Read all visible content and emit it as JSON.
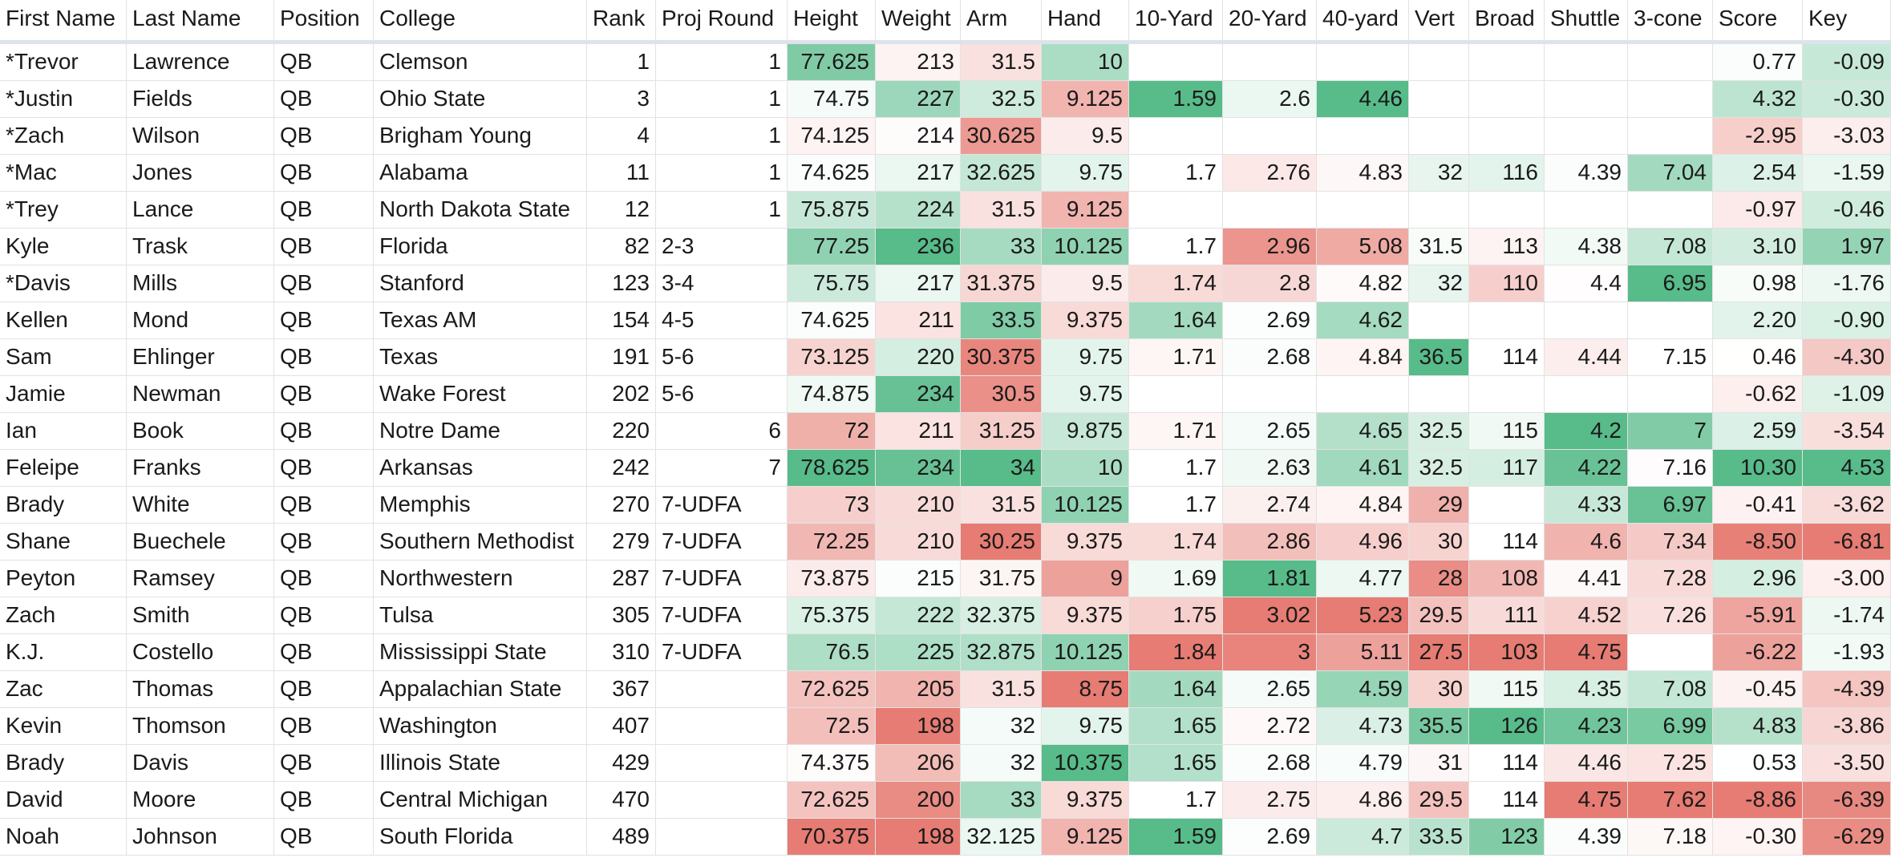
{
  "sheet": {
    "headers": [
      "First Name",
      "Last Name",
      "Position",
      "College",
      "Rank",
      "Proj Round",
      "Height",
      "Weight",
      "Arm",
      "Hand",
      "10-Yard",
      "20-Yard",
      "40-yard",
      "Vert",
      "Broad",
      "Shuttle",
      "3-cone",
      "Score",
      "Key"
    ],
    "rows": [
      [
        "*Trevor",
        "Lawrence",
        "QB",
        "Clemson",
        "1",
        "1",
        "77.625",
        "213",
        "31.5",
        "10",
        "",
        "",
        "",
        "",
        "",
        "",
        "",
        "0.77",
        "-0.09"
      ],
      [
        "*Justin",
        "Fields",
        "QB",
        "Ohio State",
        "3",
        "1",
        "74.75",
        "227",
        "32.5",
        "9.125",
        "1.59",
        "2.6",
        "4.46",
        "",
        "",
        "",
        "",
        "4.32",
        "-0.30"
      ],
      [
        "*Zach",
        "Wilson",
        "QB",
        "Brigham Young",
        "4",
        "1",
        "74.125",
        "214",
        "30.625",
        "9.5",
        "",
        "",
        "",
        "",
        "",
        "",
        "",
        "-2.95",
        "-3.03"
      ],
      [
        "*Mac",
        "Jones",
        "QB",
        "Alabama",
        "11",
        "1",
        "74.625",
        "217",
        "32.625",
        "9.75",
        "1.7",
        "2.76",
        "4.83",
        "32",
        "116",
        "4.39",
        "7.04",
        "2.54",
        "-1.59"
      ],
      [
        "*Trey",
        "Lance",
        "QB",
        "North Dakota State",
        "12",
        "1",
        "75.875",
        "224",
        "31.5",
        "9.125",
        "",
        "",
        "",
        "",
        "",
        "",
        "",
        "-0.97",
        "-0.46"
      ],
      [
        "Kyle",
        "Trask",
        "QB",
        "Florida",
        "82",
        "2-3",
        "77.25",
        "236",
        "33",
        "10.125",
        "1.7",
        "2.96",
        "5.08",
        "31.5",
        "113",
        "4.38",
        "7.08",
        "3.10",
        "1.97"
      ],
      [
        "*Davis",
        "Mills",
        "QB",
        "Stanford",
        "123",
        "3-4",
        "75.75",
        "217",
        "31.375",
        "9.5",
        "1.74",
        "2.8",
        "4.82",
        "32",
        "110",
        "4.4",
        "6.95",
        "0.98",
        "-1.76"
      ],
      [
        "Kellen",
        "Mond",
        "QB",
        "Texas AM",
        "154",
        "4-5",
        "74.625",
        "211",
        "33.5",
        "9.375",
        "1.64",
        "2.69",
        "4.62",
        "",
        "",
        "",
        "",
        "2.20",
        "-0.90"
      ],
      [
        "Sam",
        "Ehlinger",
        "QB",
        "Texas",
        "191",
        "5-6",
        "73.125",
        "220",
        "30.375",
        "9.75",
        "1.71",
        "2.68",
        "4.84",
        "36.5",
        "114",
        "4.44",
        "7.15",
        "0.46",
        "-4.30"
      ],
      [
        "Jamie",
        "Newman",
        "QB",
        "Wake Forest",
        "202",
        "5-6",
        "74.875",
        "234",
        "30.5",
        "9.75",
        "",
        "",
        "",
        "",
        "",
        "",
        "",
        "-0.62",
        "-1.09"
      ],
      [
        "Ian",
        "Book",
        "QB",
        "Notre Dame",
        "220",
        "6",
        "72",
        "211",
        "31.25",
        "9.875",
        "1.71",
        "2.65",
        "4.65",
        "32.5",
        "115",
        "4.2",
        "7",
        "2.59",
        "-3.54"
      ],
      [
        "Feleipe",
        "Franks",
        "QB",
        "Arkansas",
        "242",
        "7",
        "78.625",
        "234",
        "34",
        "10",
        "1.7",
        "2.63",
        "4.61",
        "32.5",
        "117",
        "4.22",
        "7.16",
        "10.30",
        "4.53"
      ],
      [
        "Brady",
        "White",
        "QB",
        "Memphis",
        "270",
        "7-UDFA",
        "73",
        "210",
        "31.5",
        "10.125",
        "1.7",
        "2.74",
        "4.84",
        "29",
        "",
        "4.33",
        "6.97",
        "-0.41",
        "-3.62"
      ],
      [
        "Shane",
        "Buechele",
        "QB",
        "Southern Methodist",
        "279",
        "7-UDFA",
        "72.25",
        "210",
        "30.25",
        "9.375",
        "1.74",
        "2.86",
        "4.96",
        "30",
        "114",
        "4.6",
        "7.34",
        "-8.50",
        "-6.81"
      ],
      [
        "Peyton",
        "Ramsey",
        "QB",
        "Northwestern",
        "287",
        "7-UDFA",
        "73.875",
        "215",
        "31.75",
        "9",
        "1.69",
        "1.81",
        "4.77",
        "28",
        "108",
        "4.41",
        "7.28",
        "2.96",
        "-3.00"
      ],
      [
        "Zach",
        "Smith",
        "QB",
        "Tulsa",
        "305",
        "7-UDFA",
        "75.375",
        "222",
        "32.375",
        "9.375",
        "1.75",
        "3.02",
        "5.23",
        "29.5",
        "111",
        "4.52",
        "7.26",
        "-5.91",
        "-1.74"
      ],
      [
        "K.J.",
        "Costello",
        "QB",
        "Mississippi State",
        "310",
        "7-UDFA",
        "76.5",
        "225",
        "32.875",
        "10.125",
        "1.84",
        "3",
        "5.11",
        "27.5",
        "103",
        "4.75",
        "",
        "-6.22",
        "-1.93"
      ],
      [
        "Zac",
        "Thomas",
        "QB",
        "Appalachian State",
        "367",
        "",
        "72.625",
        "205",
        "31.5",
        "8.75",
        "1.64",
        "2.65",
        "4.59",
        "30",
        "115",
        "4.35",
        "7.08",
        "-0.45",
        "-4.39"
      ],
      [
        "Kevin",
        "Thomson",
        "QB",
        "Washington",
        "407",
        "",
        "72.5",
        "198",
        "32",
        "9.75",
        "1.65",
        "2.72",
        "4.73",
        "35.5",
        "126",
        "4.23",
        "6.99",
        "4.83",
        "-3.86"
      ],
      [
        "Brady",
        "Davis",
        "QB",
        "Illinois State",
        "429",
        "",
        "74.375",
        "206",
        "32",
        "10.375",
        "1.65",
        "2.68",
        "4.79",
        "31",
        "114",
        "4.46",
        "7.25",
        "0.53",
        "-3.50"
      ],
      [
        "David",
        "Moore",
        "QB",
        "Central Michigan",
        "470",
        "",
        "72.625",
        "200",
        "33",
        "9.375",
        "1.7",
        "2.75",
        "4.86",
        "29.5",
        "114",
        "4.75",
        "7.62",
        "-8.86",
        "-6.39"
      ],
      [
        "Noah",
        "Johnson",
        "QB",
        "South Florida",
        "489",
        "",
        "70.375",
        "198",
        "32.125",
        "9.125",
        "1.59",
        "2.69",
        "4.7",
        "33.5",
        "123",
        "4.39",
        "7.18",
        "-0.30",
        "-6.29"
      ]
    ]
  },
  "colors": {
    "good": "#57bb8a",
    "neutral": "#ffffff",
    "bad": "#e67c73",
    "grid": "#e2e2e2",
    "header_rule": "#dde3ea"
  }
}
